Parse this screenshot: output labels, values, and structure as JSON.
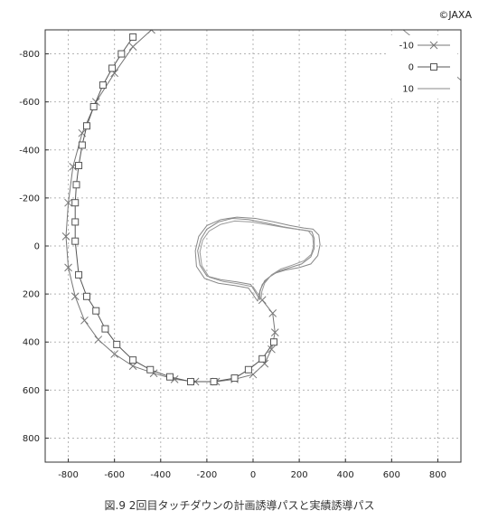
{
  "credit": "©JAXA",
  "caption": "図.9  2回目タッチダウンの計画誘導パスと実績誘導パス",
  "chart_data": {
    "type": "line",
    "xlim": [
      -900,
      900
    ],
    "ylim": [
      -900,
      900
    ],
    "y_inverted": true,
    "grid": true,
    "legend_position": "top-right",
    "x_ticks": [
      -800,
      -600,
      -400,
      -200,
      0,
      200,
      400,
      600,
      800
    ],
    "y_ticks": [
      -800,
      -600,
      -400,
      -200,
      0,
      200,
      400,
      600,
      800
    ],
    "x_tick_labels": [
      "-800",
      "-600",
      "-400",
      "-200",
      "0",
      "200",
      "400",
      "600",
      "800"
    ],
    "y_tick_labels": [
      "-800",
      "-600",
      "-400",
      "-200",
      "0",
      "200",
      "400",
      "600",
      "800"
    ],
    "legend": [
      "-10",
      "0",
      "10"
    ],
    "series": [
      {
        "name": "-10",
        "marker": "x",
        "color": "#777777",
        "points": [
          [
            -440,
            -900
          ],
          [
            -520,
            -830
          ],
          [
            -600,
            -720
          ],
          [
            -680,
            -600
          ],
          [
            -740,
            -470
          ],
          [
            -780,
            -330
          ],
          [
            -800,
            -180
          ],
          [
            -810,
            -40
          ],
          [
            -800,
            90
          ],
          [
            -770,
            210
          ],
          [
            -730,
            310
          ],
          [
            -670,
            390
          ],
          [
            -600,
            450
          ],
          [
            -520,
            500
          ],
          [
            -430,
            530
          ],
          [
            -340,
            555
          ],
          [
            -250,
            565
          ],
          [
            -160,
            565
          ],
          [
            -80,
            555
          ],
          [
            0,
            535
          ],
          [
            50,
            490
          ],
          [
            80,
            430
          ],
          [
            95,
            360
          ],
          [
            85,
            280
          ],
          [
            40,
            225
          ]
        ]
      },
      {
        "name": "0",
        "marker": "square",
        "color": "#555555",
        "points": [
          [
            -520,
            -870
          ],
          [
            -570,
            -800
          ],
          [
            -610,
            -740
          ],
          [
            -650,
            -670
          ],
          [
            -690,
            -580
          ],
          [
            -720,
            -500
          ],
          [
            -740,
            -420
          ],
          [
            -755,
            -335
          ],
          [
            -765,
            -255
          ],
          [
            -770,
            -180
          ],
          [
            -770,
            -100
          ],
          [
            -770,
            -20
          ],
          [
            -755,
            120
          ],
          [
            -720,
            210
          ],
          [
            -680,
            270
          ],
          [
            -640,
            345
          ],
          [
            -590,
            410
          ],
          [
            -520,
            475
          ],
          [
            -445,
            515
          ],
          [
            -360,
            545
          ],
          [
            -270,
            565
          ],
          [
            -170,
            565
          ],
          [
            -80,
            550
          ],
          [
            -20,
            515
          ],
          [
            40,
            470
          ],
          [
            90,
            400
          ]
        ]
      },
      {
        "name": "10",
        "marker": "none",
        "color": "#888888",
        "points": [
          [
            650,
            -900
          ],
          [
            750,
            -820
          ],
          [
            830,
            -750
          ],
          [
            900,
            -690
          ]
        ]
      },
      {
        "name": "",
        "marker": "none",
        "color": "#888888",
        "points": [
          [
            30,
            225
          ],
          [
            -10,
            160
          ],
          [
            -70,
            150
          ],
          [
            -140,
            140
          ],
          [
            -200,
            125
          ],
          [
            -230,
            80
          ],
          [
            -240,
            20
          ],
          [
            -225,
            -30
          ],
          [
            -200,
            -70
          ],
          [
            -150,
            -100
          ],
          [
            -90,
            -115
          ],
          [
            -20,
            -110
          ],
          [
            60,
            -95
          ],
          [
            130,
            -80
          ],
          [
            190,
            -70
          ],
          [
            230,
            -65
          ],
          [
            255,
            -60
          ],
          [
            265,
            -30
          ],
          [
            265,
            10
          ],
          [
            250,
            45
          ],
          [
            210,
            75
          ],
          [
            160,
            90
          ],
          [
            110,
            105
          ],
          [
            70,
            130
          ],
          [
            40,
            160
          ],
          [
            30,
            190
          ],
          [
            30,
            225
          ]
        ]
      },
      {
        "name": "",
        "marker": "none",
        "color": "#888888",
        "points": [
          [
            20,
            230
          ],
          [
            -20,
            175
          ],
          [
            -80,
            165
          ],
          [
            -150,
            155
          ],
          [
            -210,
            135
          ],
          [
            -245,
            85
          ],
          [
            -250,
            20
          ],
          [
            -235,
            -40
          ],
          [
            -200,
            -85
          ],
          [
            -140,
            -110
          ],
          [
            -70,
            -120
          ],
          [
            10,
            -115
          ],
          [
            90,
            -100
          ],
          [
            160,
            -85
          ],
          [
            220,
            -75
          ],
          [
            260,
            -70
          ],
          [
            285,
            -45
          ],
          [
            290,
            -5
          ],
          [
            280,
            40
          ],
          [
            250,
            75
          ],
          [
            200,
            90
          ],
          [
            140,
            100
          ],
          [
            90,
            115
          ],
          [
            50,
            145
          ],
          [
            30,
            185
          ],
          [
            20,
            230
          ]
        ]
      },
      {
        "name": "",
        "marker": "none",
        "color": "#999999",
        "points": [
          [
            35,
            220
          ],
          [
            0,
            170
          ],
          [
            -60,
            158
          ],
          [
            -130,
            148
          ],
          [
            -190,
            130
          ],
          [
            -222,
            82
          ],
          [
            -230,
            25
          ],
          [
            -218,
            -25
          ],
          [
            -190,
            -62
          ],
          [
            -140,
            -90
          ],
          [
            -80,
            -104
          ],
          [
            -10,
            -100
          ],
          [
            70,
            -88
          ],
          [
            140,
            -76
          ],
          [
            200,
            -68
          ],
          [
            240,
            -62
          ],
          [
            258,
            -40
          ],
          [
            262,
            0
          ],
          [
            252,
            35
          ],
          [
            220,
            62
          ],
          [
            170,
            80
          ],
          [
            120,
            96
          ],
          [
            80,
            120
          ],
          [
            50,
            155
          ],
          [
            38,
            190
          ],
          [
            35,
            220
          ]
        ]
      }
    ]
  }
}
